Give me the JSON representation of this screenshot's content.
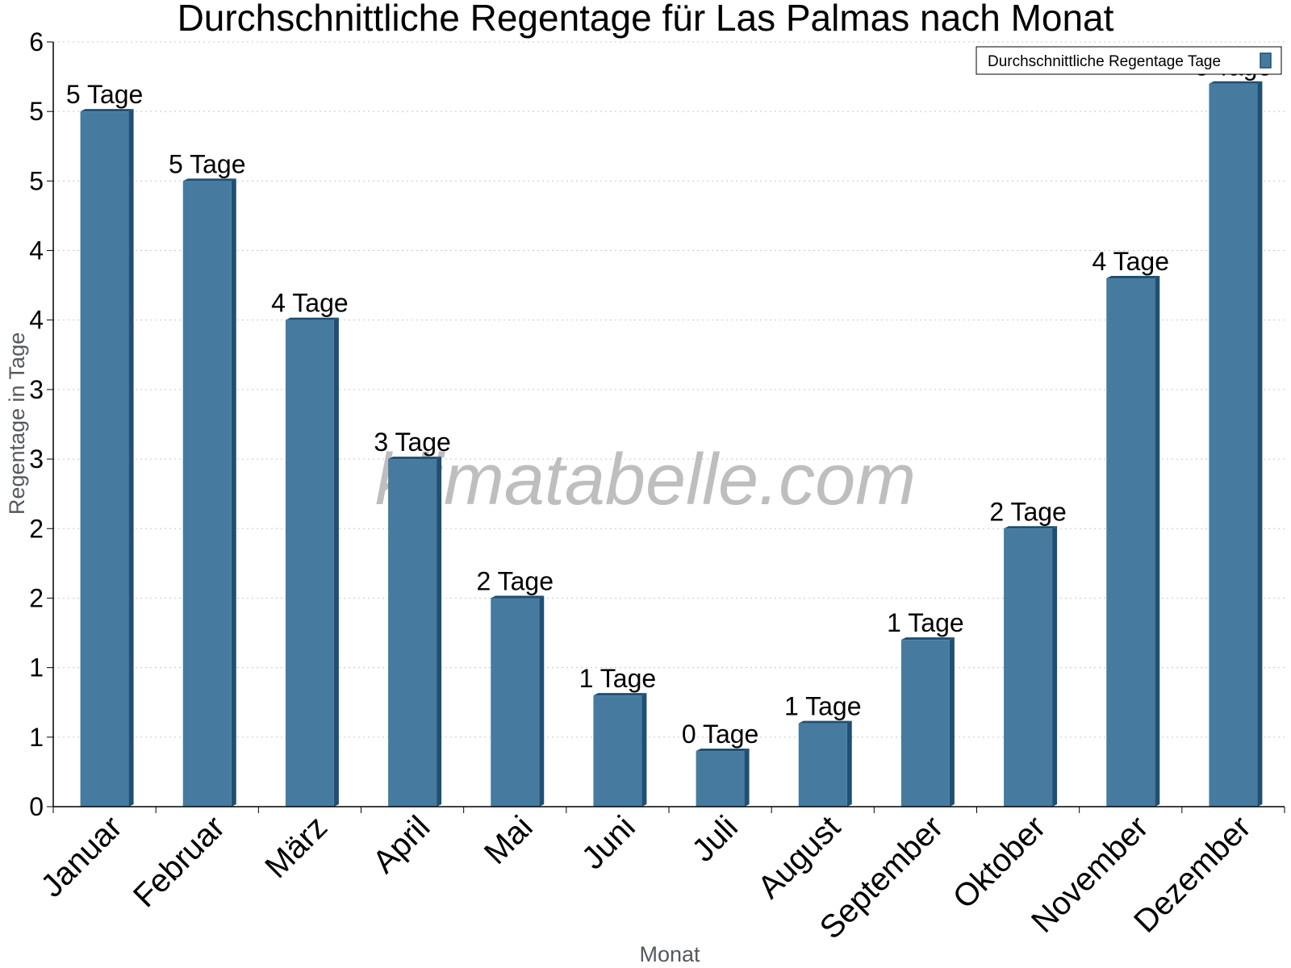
{
  "chart_data": {
    "type": "bar",
    "title": "Durchschnittliche Regentage für Las Palmas nach Monat",
    "xlabel": "Monat",
    "ylabel": "Regentage in Tage",
    "categories": [
      "Januar",
      "Februar",
      "März",
      "April",
      "Mai",
      "Juni",
      "Juli",
      "August",
      "September",
      "Oktober",
      "November",
      "Dezember"
    ],
    "series": [
      {
        "name": "Durchschnittliche Regentage Tage",
        "values": [
          5.0,
          4.5,
          3.5,
          2.5,
          1.5,
          0.8,
          0.4,
          0.6,
          1.2,
          2.0,
          3.8,
          5.2
        ],
        "labels": [
          "5 Tage",
          "5 Tage",
          "4 Tage",
          "3 Tage",
          "2 Tage",
          "1 Tage",
          "0 Tage",
          "1 Tage",
          "1 Tage",
          "2 Tage",
          "4 Tage",
          "5 Tage"
        ]
      }
    ],
    "ylim": [
      0,
      5.5
    ],
    "yticks": [
      0,
      0.5,
      1,
      1.5,
      2,
      2.5,
      3,
      3.5,
      4,
      4.5,
      5,
      5.5
    ],
    "ytick_labels": [
      "0",
      "1",
      "1",
      "2",
      "2",
      "3",
      "3",
      "4",
      "4",
      "5",
      "5",
      "6"
    ],
    "grid": true,
    "legend": "top-right",
    "watermark": "klimatabelle.com",
    "colors": {
      "bar": "#467b9f",
      "bar_side": "#1f4f72",
      "bar_top": "#1f4f72",
      "grid": "#c8c8c8"
    }
  }
}
